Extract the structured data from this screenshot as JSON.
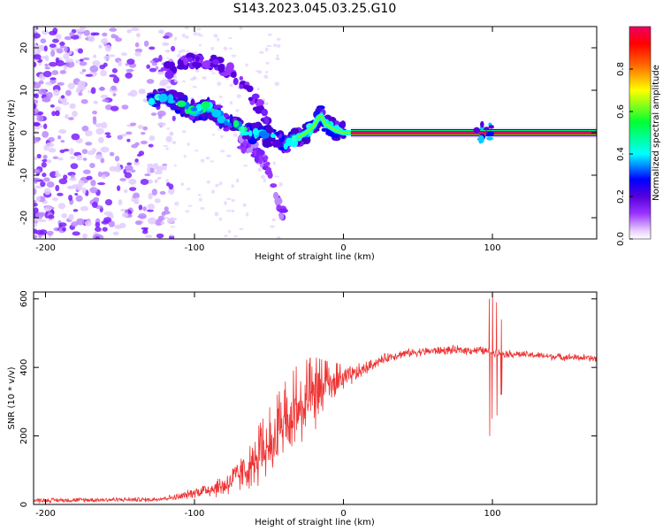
{
  "title": "S143.2023.045.03.25.G10",
  "chart_data": [
    {
      "type": "heatmap",
      "xlabel": "Height of straight line (km)",
      "ylabel": "Frequency (Hz)",
      "xlim": [
        -208,
        170
      ],
      "ylim": [
        -25,
        25
      ],
      "x_ticks": [
        -200,
        -100,
        0,
        100
      ],
      "y_ticks": [
        -20,
        -10,
        0,
        10,
        20
      ],
      "colorbar": {
        "label": "Normalized spectral amplitude",
        "range": [
          0,
          1
        ],
        "ticks": [
          0.0,
          0.2,
          0.4,
          0.6,
          0.8
        ],
        "colormap": [
          "#ffffff",
          "#e6ccff",
          "#9933ff",
          "#5500dd",
          "#0000ff",
          "#00ffff",
          "#00ff33",
          "#ffff00",
          "#ff6600",
          "#ff0000",
          "#ee0066"
        ]
      },
      "ridge": {
        "points": [
          [
            -130,
            7.5
          ],
          [
            -120,
            8.5
          ],
          [
            -110,
            7
          ],
          [
            -100,
            5
          ],
          [
            -90,
            6
          ],
          [
            -80,
            3
          ],
          [
            -70,
            1
          ],
          [
            -60,
            0
          ],
          [
            -50,
            -1
          ],
          [
            -40,
            -2.5
          ],
          [
            -35,
            -2
          ],
          [
            -30,
            -1
          ],
          [
            -25,
            0
          ],
          [
            -20,
            1.5
          ],
          [
            -17,
            3.5
          ],
          [
            -15,
            4
          ],
          [
            -12,
            2
          ],
          [
            -5,
            0.5
          ],
          [
            0,
            0
          ],
          [
            5,
            0
          ],
          [
            10,
            0
          ],
          [
            90,
            0
          ],
          [
            93,
            0.3
          ],
          [
            95,
            0
          ],
          [
            100,
            0
          ],
          [
            170,
            0
          ]
        ],
        "upper_branch": [
          [
            -120,
            14.5
          ],
          [
            -100,
            17
          ],
          [
            -90,
            17
          ],
          [
            -80,
            15
          ],
          [
            -70,
            13
          ],
          [
            -60,
            8
          ],
          [
            -50,
            2
          ]
        ],
        "lower_branch": [
          [
            -70,
            -2
          ],
          [
            -60,
            -4
          ],
          [
            -50,
            -8
          ],
          [
            -45,
            -15
          ],
          [
            -40,
            -20
          ]
        ]
      },
      "stable_line": {
        "x_range": [
          5,
          170
        ],
        "frequency": 0
      }
    },
    {
      "type": "line",
      "xlabel": "Height of straight line (km)",
      "ylabel": "SNR (10 * v/v)",
      "xlim": [
        -208,
        170
      ],
      "ylim": [
        0,
        620
      ],
      "x_ticks": [
        -200,
        -100,
        0,
        100
      ],
      "y_ticks": [
        0,
        200,
        400,
        600
      ],
      "color": "#ee3333",
      "envelope": [
        [
          -208,
          12
        ],
        [
          -150,
          14
        ],
        [
          -130,
          14
        ],
        [
          -120,
          18
        ],
        [
          -110,
          22
        ],
        [
          -100,
          35
        ],
        [
          -90,
          45
        ],
        [
          -80,
          55
        ],
        [
          -70,
          85
        ],
        [
          -60,
          120
        ],
        [
          -50,
          170
        ],
        [
          -40,
          220
        ],
        [
          -30,
          270
        ],
        [
          -20,
          310
        ],
        [
          -10,
          340
        ],
        [
          0,
          365
        ],
        [
          10,
          385
        ],
        [
          20,
          410
        ],
        [
          30,
          430
        ],
        [
          40,
          440
        ],
        [
          50,
          445
        ],
        [
          60,
          448
        ],
        [
          70,
          450
        ],
        [
          80,
          450
        ],
        [
          90,
          450
        ],
        [
          95,
          448
        ],
        [
          100,
          445
        ],
        [
          110,
          440
        ],
        [
          120,
          438
        ],
        [
          130,
          435
        ],
        [
          140,
          432
        ],
        [
          150,
          430
        ],
        [
          160,
          428
        ],
        [
          170,
          425
        ]
      ],
      "noise_amplitude": [
        [
          -208,
          8
        ],
        [
          -120,
          8
        ],
        [
          -100,
          18
        ],
        [
          -80,
          40
        ],
        [
          -60,
          80
        ],
        [
          -40,
          120
        ],
        [
          -30,
          130
        ],
        [
          -20,
          110
        ],
        [
          -10,
          70
        ],
        [
          0,
          40
        ],
        [
          10,
          30
        ],
        [
          20,
          18
        ],
        [
          40,
          15
        ],
        [
          80,
          15
        ],
        [
          100,
          15
        ],
        [
          120,
          12
        ],
        [
          170,
          12
        ]
      ],
      "spikes": [
        {
          "x": 98,
          "min": 200,
          "max": 600
        },
        {
          "x": 100,
          "min": 250,
          "max": 620
        },
        {
          "x": 103,
          "min": 260,
          "max": 590
        },
        {
          "x": 106,
          "min": 320,
          "max": 540
        }
      ]
    }
  ]
}
